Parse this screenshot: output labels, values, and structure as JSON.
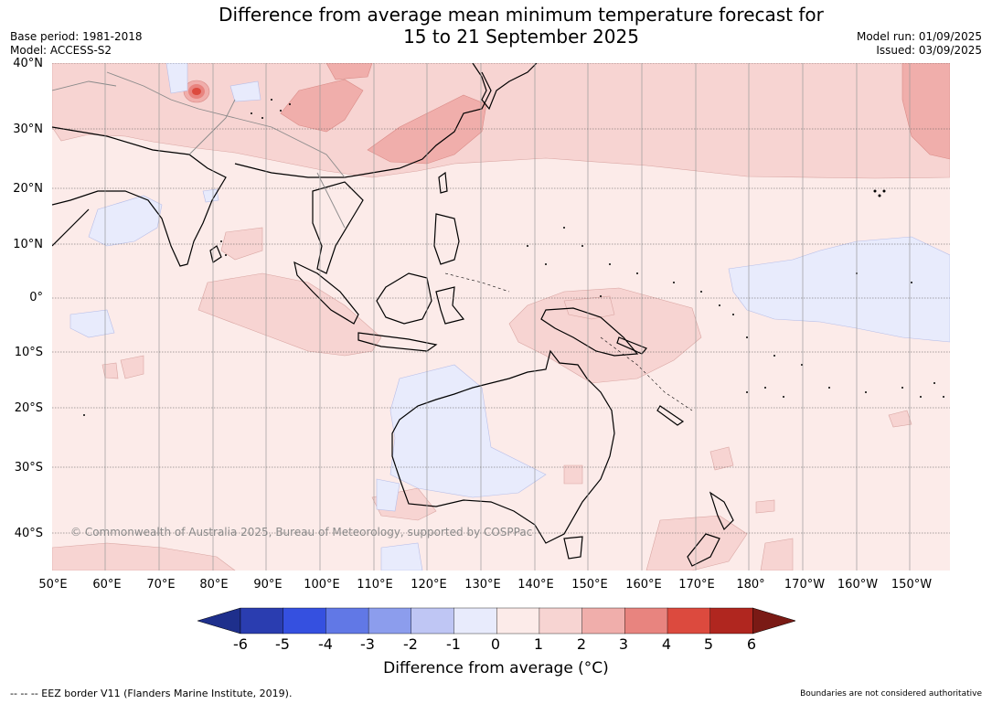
{
  "title_line1": "Difference from average mean minimum temperature forecast for",
  "title_line2": "15 to 21 September 2025",
  "base_period": "Base period: 1981-2018",
  "model": "Model: ACCESS-S2",
  "model_run": "Model run: 01/09/2025",
  "issued": "Issued: 03/09/2025",
  "copyright": "© Commonwealth of Australia 2025, Bureau of Meteorology, supported by COSPPac",
  "lat_labels": [
    "40°N",
    "30°N",
    "20°N",
    "10°N",
    "0°",
    "10°S",
    "20°S",
    "30°S",
    "40°S"
  ],
  "lon_labels": [
    "50°E",
    "60°E",
    "70°E",
    "80°E",
    "90°E",
    "100°E",
    "110°E",
    "120°E",
    "130°E",
    "140°E",
    "150°E",
    "160°E",
    "170°E",
    "180°",
    "170°W",
    "160°W",
    "150°W"
  ],
  "colorbar": {
    "ticks": [
      "-6",
      "-5",
      "-4",
      "-3",
      "-2",
      "-1",
      "0",
      "1",
      "2",
      "3",
      "4",
      "5",
      "6"
    ],
    "colors": [
      "#1e2f8c",
      "#2a3db0",
      "#3550e0",
      "#6178e6",
      "#8c9ded",
      "#bfc6f4",
      "#e8ebfc",
      "#fcebe9",
      "#f7d4d2",
      "#f0aeab",
      "#e8847f",
      "#dc4a3e",
      "#b0261f",
      "#7a1a15"
    ],
    "label": "Difference from average (°C)"
  },
  "footer_left": "--  --  -- EEZ border V11 (Flanders Marine Institute, 2019).",
  "footer_right": "Boundaries are not considered authoritative"
}
